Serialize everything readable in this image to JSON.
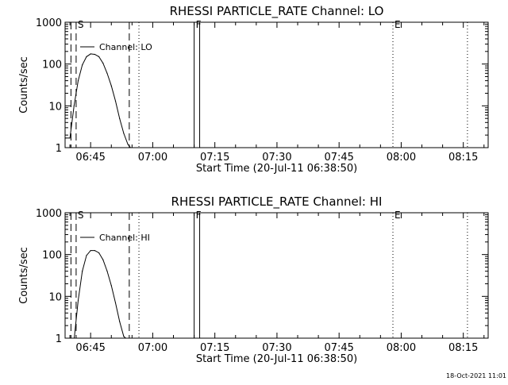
{
  "footer": {
    "timestamp": "18-Oct-2021 11:01"
  },
  "chart_data": [
    {
      "type": "line",
      "title": "RHESSI PARTICLE_RATE Channel: LO",
      "xlabel": "Start Time (20-Jul-11 06:38:50)",
      "ylabel": "Counts/sec",
      "yscale": "log",
      "ylim": [
        1,
        1000
      ],
      "xlim": [
        "06:38:50",
        "08:21:00"
      ],
      "xticks": [
        "06:45",
        "07:00",
        "07:15",
        "07:30",
        "07:45",
        "08:00",
        "08:15"
      ],
      "yticks": [
        "1",
        "10",
        "100",
        "1000"
      ],
      "legend": "top-left",
      "series": [
        {
          "name": "Channel: LO",
          "x": [
            "06:39:00",
            "06:40:00",
            "06:41:00",
            "06:42:00",
            "06:43:00",
            "06:44:00",
            "06:45:00",
            "06:46:00",
            "06:47:00",
            "06:48:00",
            "06:49:00",
            "06:50:00",
            "06:51:00",
            "06:52:00",
            "06:53:00",
            "06:54:00",
            "06:55:00"
          ],
          "y": [
            1.7,
            1.7,
            10,
            40,
            95,
            150,
            175,
            170,
            150,
            105,
            60,
            30,
            13,
            5,
            2.2,
            1.2,
            0.9
          ]
        }
      ],
      "markers": [
        {
          "label": "",
          "time": "06:40:15",
          "style": "dashed"
        },
        {
          "label": "S",
          "time": "06:41:30",
          "style": "dashed"
        },
        {
          "label": "",
          "time": "06:54:20",
          "style": "dashed"
        },
        {
          "label": "",
          "time": "06:56:40",
          "style": "dotted"
        },
        {
          "label": "F",
          "time": "07:10:00",
          "style": "solid"
        },
        {
          "label": "",
          "time": "07:11:20",
          "style": "solid"
        },
        {
          "label": "E",
          "time": "07:58:00",
          "style": "dotted"
        },
        {
          "label": "",
          "time": "08:16:00",
          "style": "dotted"
        }
      ]
    },
    {
      "type": "line",
      "title": "RHESSI PARTICLE_RATE Channel: HI",
      "xlabel": "Start Time (20-Jul-11 06:38:50)",
      "ylabel": "Counts/sec",
      "yscale": "log",
      "ylim": [
        1,
        1000
      ],
      "xlim": [
        "06:38:50",
        "08:21:00"
      ],
      "xticks": [
        "06:45",
        "07:00",
        "07:15",
        "07:30",
        "07:45",
        "08:00",
        "08:15"
      ],
      "yticks": [
        "1",
        "10",
        "100",
        "1000"
      ],
      "legend": "top-left",
      "series": [
        {
          "name": "Channel: HI",
          "x": [
            "06:41:00",
            "06:42:00",
            "06:43:00",
            "06:44:00",
            "06:45:00",
            "06:46:00",
            "06:47:00",
            "06:48:00",
            "06:49:00",
            "06:50:00",
            "06:51:00",
            "06:52:00",
            "06:53:00",
            "06:54:00"
          ],
          "y": [
            0.9,
            8,
            40,
            95,
            125,
            125,
            110,
            75,
            40,
            18,
            7,
            2.5,
            1.1,
            0.9
          ]
        }
      ],
      "markers": [
        {
          "label": "",
          "time": "06:40:15",
          "style": "dashed"
        },
        {
          "label": "S",
          "time": "06:41:30",
          "style": "dashed"
        },
        {
          "label": "",
          "time": "06:54:20",
          "style": "dashed"
        },
        {
          "label": "",
          "time": "06:56:40",
          "style": "dotted"
        },
        {
          "label": "F",
          "time": "07:10:00",
          "style": "solid"
        },
        {
          "label": "",
          "time": "07:11:20",
          "style": "solid"
        },
        {
          "label": "E",
          "time": "07:58:00",
          "style": "dotted"
        },
        {
          "label": "",
          "time": "08:16:00",
          "style": "dotted"
        }
      ]
    }
  ]
}
